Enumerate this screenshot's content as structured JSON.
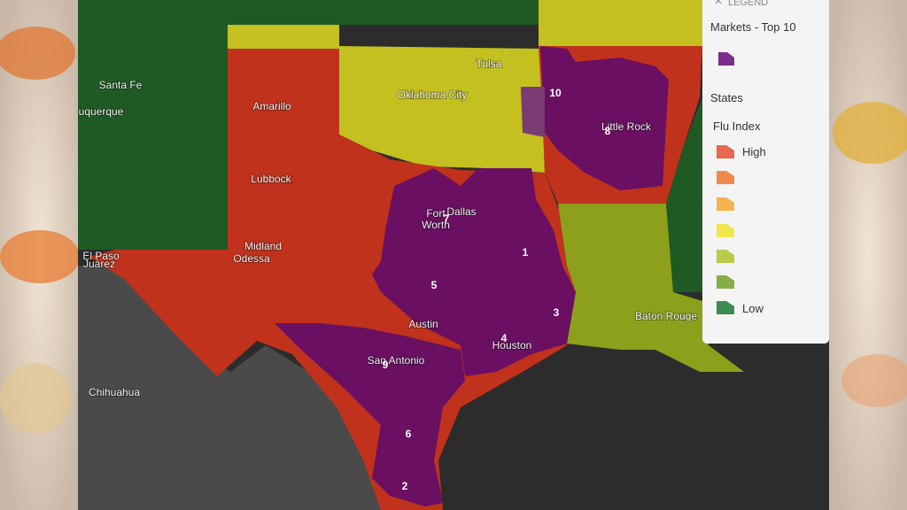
{
  "legend": {
    "header": "LEGEND",
    "markets_title": "Markets - Top 10",
    "states_title": "States",
    "flu_index_title": "Flu Index",
    "high": "High",
    "low": "Low"
  },
  "cities": [
    "Santa Fe",
    "uquerque",
    "Amarillo",
    "Lubbock",
    "Midland",
    "Odessa",
    "El Paso",
    "Juárez",
    "Chihuahua",
    "Tulsa",
    "Oklahoma City",
    "Little Rock",
    "Dallas",
    "Fort",
    "Worth",
    "Austin",
    "San Antonio",
    "Houston",
    "Baton Rouge"
  ],
  "markets": [
    "10",
    "8",
    "7",
    "1",
    "5",
    "3",
    "4",
    "9",
    "6",
    "2"
  ]
}
